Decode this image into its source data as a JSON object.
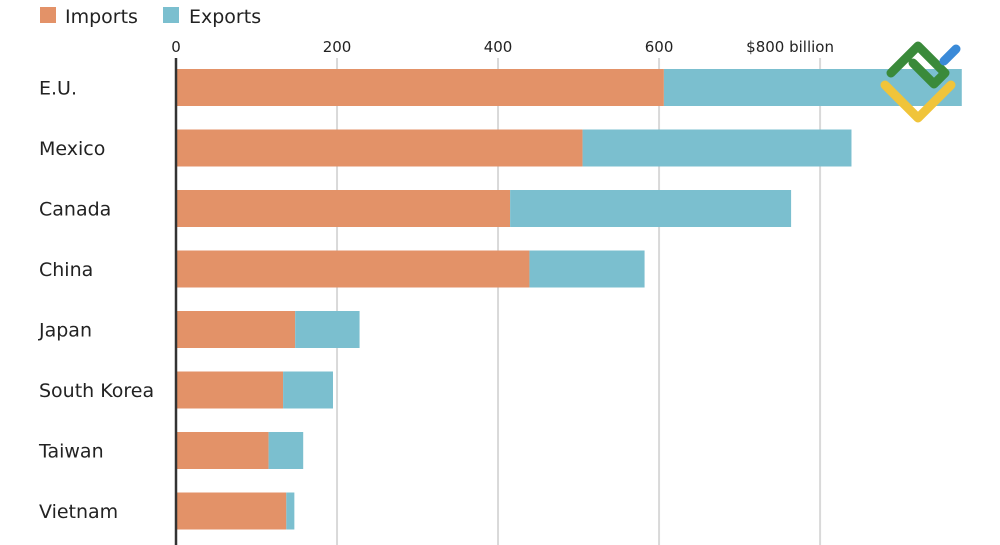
{
  "chart_data": {
    "type": "bar",
    "orientation": "horizontal",
    "stacked": true,
    "categories": [
      "E.U.",
      "Mexico",
      "Canada",
      "China",
      "Japan",
      "South Korea",
      "Taiwan",
      "Vietnam"
    ],
    "series": [
      {
        "name": "Imports",
        "color": "#e39268",
        "values": [
          606,
          505,
          415,
          439,
          148,
          133,
          115,
          137
        ]
      },
      {
        "name": "Exports",
        "color": "#7bbfcf",
        "values": [
          370,
          334,
          349,
          143,
          80,
          62,
          43,
          10
        ]
      }
    ],
    "xlim": [
      0,
      980
    ],
    "xticks": [
      0,
      200,
      400,
      600,
      800
    ],
    "xtick_labels": [
      "0",
      "200",
      "400",
      "600",
      "$800 billion"
    ],
    "grid": true,
    "legend_position": "top-left",
    "title": "",
    "xlabel": "",
    "ylabel": ""
  },
  "logo": {
    "name": "watermark-logo",
    "colors": [
      "#3a8a3a",
      "#3a8ad8",
      "#f0c43a"
    ]
  }
}
